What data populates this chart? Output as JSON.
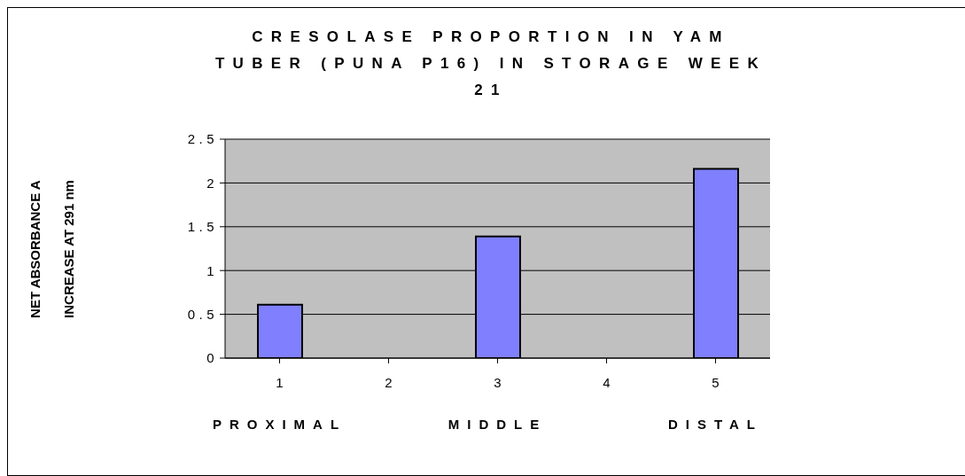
{
  "chart_data": {
    "type": "bar",
    "title": "CRESOLASE PROPORTION IN YAM TUBER (PUNA P16) IN STORAGE WEEK 21",
    "ylabel": "NET ABSORBANCE A\nINCREASE AT 291 nm",
    "categories": [
      "1",
      "2",
      "3",
      "4",
      "5"
    ],
    "values": [
      0.61,
      null,
      1.39,
      null,
      2.16
    ],
    "color": "#8080ff",
    "ylim": [
      0,
      2.5
    ],
    "yticks": [
      0,
      0.5,
      1,
      1.5,
      2,
      2.5
    ],
    "grid": "y",
    "annotations": [
      "PROXIMAL",
      "MIDDLE",
      "DISTAL"
    ]
  }
}
